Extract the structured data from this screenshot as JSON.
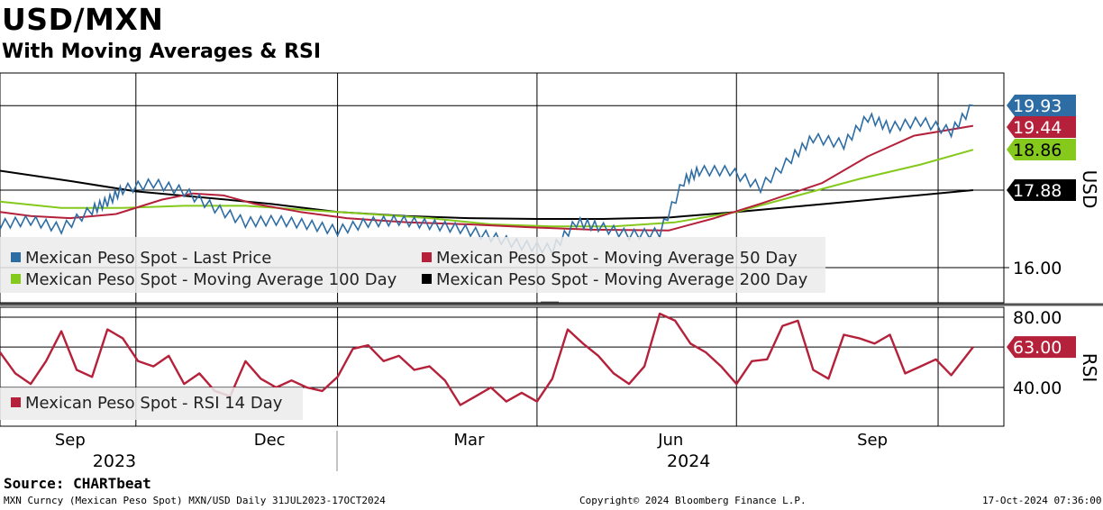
{
  "header": {
    "title": "USD/MXN",
    "subtitle": "With Moving Averages & RSI"
  },
  "legend_top": [
    {
      "label": "Mexican Peso Spot - Last Price",
      "color": "#2e6da4"
    },
    {
      "label": "Mexican Peso Spot - Moving Average 50 Day",
      "color": "#b5213a"
    },
    {
      "label": "Mexican Peso Spot - Moving Average 100 Day",
      "color": "#84c91c"
    },
    {
      "label": "Mexican Peso Spot - Moving Average 200 Day",
      "color": "#000000"
    }
  ],
  "legend_bottom": [
    {
      "label": "Mexican Peso Spot - RSI 14 Day",
      "color": "#b5213a"
    }
  ],
  "footer": {
    "source": "Source: CHARTbeat",
    "ticker_info": "MXN Curncy (Mexican Peso Spot) MXN/USD  Daily 31JUL2023-17OCT2024",
    "copyright": "Copyright© 2024 Bloomberg Finance L.P.",
    "timestamp": "17-Oct-2024 07:36:00"
  },
  "chart_data": [
    {
      "type": "line",
      "title": "USD/MXN",
      "axis_label": "USD",
      "x_ticks": [
        "Sep",
        "Dec",
        "Mar",
        "Jun",
        "Sep"
      ],
      "year_labels": [
        "2023",
        "2024"
      ],
      "y_ticks": [
        "16.00"
      ],
      "tags": [
        {
          "label": "19.93",
          "color": "#2e6da4"
        },
        {
          "label": "19.44",
          "color": "#b5213a"
        },
        {
          "label": "18.86",
          "color": "#84c91c"
        },
        {
          "label": "17.88",
          "color": "#000000"
        }
      ],
      "series": [
        {
          "name": "Mexican Peso Spot - Last Price",
          "color": "#2e6da4",
          "x": [
            "2023-07-31",
            "2023-08-14",
            "2023-08-28",
            "2023-09-11",
            "2023-09-18",
            "2023-09-25",
            "2023-10-09",
            "2023-10-23",
            "2023-11-06",
            "2023-11-20",
            "2023-12-04",
            "2023-12-18",
            "2024-01-01",
            "2024-01-15",
            "2024-01-29",
            "2024-02-12",
            "2024-02-26",
            "2024-03-11",
            "2024-03-25",
            "2024-04-08",
            "2024-04-19",
            "2024-04-29",
            "2024-05-13",
            "2024-05-27",
            "2024-06-07",
            "2024-06-14",
            "2024-06-28",
            "2024-07-12",
            "2024-07-26",
            "2024-08-05",
            "2024-08-19",
            "2024-08-30",
            "2024-09-09",
            "2024-09-23",
            "2024-10-07",
            "2024-10-17"
          ],
          "values": [
            17.05,
            17.15,
            16.95,
            17.4,
            17.6,
            17.9,
            18.05,
            17.85,
            17.45,
            17.1,
            17.15,
            17.05,
            16.9,
            17.1,
            17.15,
            17.05,
            16.95,
            16.75,
            16.55,
            16.45,
            17.1,
            17.0,
            16.8,
            16.85,
            18.1,
            18.35,
            18.35,
            17.95,
            18.65,
            19.15,
            19.0,
            19.65,
            19.4,
            19.55,
            19.3,
            19.93
          ]
        },
        {
          "name": "Mexican Peso Spot - Moving Average 50 Day",
          "color": "#b5213a",
          "x": [
            "2023-07-31",
            "2023-08-14",
            "2023-09-01",
            "2023-09-22",
            "2023-10-13",
            "2023-10-27",
            "2023-11-10",
            "2023-11-24",
            "2023-12-15",
            "2024-01-05",
            "2024-02-02",
            "2024-03-01",
            "2024-03-29",
            "2024-04-26",
            "2024-05-31",
            "2024-06-21",
            "2024-07-12",
            "2024-08-09",
            "2024-08-30",
            "2024-09-20",
            "2024-10-17"
          ],
          "values": [
            17.35,
            17.25,
            17.2,
            17.3,
            17.65,
            17.8,
            17.75,
            17.55,
            17.35,
            17.2,
            17.1,
            17.05,
            16.98,
            16.92,
            16.9,
            17.2,
            17.55,
            18.05,
            18.7,
            19.2,
            19.44
          ]
        },
        {
          "name": "Mexican Peso Spot - Moving Average 100 Day",
          "color": "#84c91c",
          "x": [
            "2023-07-31",
            "2023-08-28",
            "2023-09-25",
            "2023-10-23",
            "2023-11-20",
            "2023-12-18",
            "2024-01-15",
            "2024-02-12",
            "2024-03-11",
            "2024-04-08",
            "2024-05-06",
            "2024-06-03",
            "2024-07-01",
            "2024-07-29",
            "2024-08-26",
            "2024-09-23",
            "2024-10-17"
          ],
          "values": [
            17.6,
            17.45,
            17.45,
            17.5,
            17.5,
            17.4,
            17.3,
            17.2,
            17.05,
            17.0,
            17.0,
            17.1,
            17.35,
            17.75,
            18.15,
            18.5,
            18.86
          ]
        },
        {
          "name": "Mexican Peso Spot - Moving Average 200 Day",
          "color": "#000000",
          "x": [
            "2023-07-31",
            "2023-09-01",
            "2023-10-01",
            "2023-11-01",
            "2023-12-01",
            "2024-01-01",
            "2024-02-01",
            "2024-03-01",
            "2024-04-01",
            "2024-05-01",
            "2024-06-01",
            "2024-07-01",
            "2024-08-01",
            "2024-09-01",
            "2024-10-17"
          ],
          "values": [
            18.35,
            18.1,
            17.85,
            17.7,
            17.55,
            17.35,
            17.25,
            17.2,
            17.18,
            17.18,
            17.22,
            17.35,
            17.5,
            17.65,
            17.88
          ]
        }
      ]
    },
    {
      "type": "line",
      "title": "RSI",
      "axis_label": "RSI",
      "y_ticks": [
        "80.00",
        "40.00"
      ],
      "tags": [
        {
          "label": "63.00",
          "color": "#b5213a"
        }
      ],
      "series": [
        {
          "name": "Mexican Peso Spot - RSI 14 Day",
          "color": "#b5213a",
          "x": [
            "2023-07-31",
            "2023-08-07",
            "2023-08-14",
            "2023-08-21",
            "2023-08-28",
            "2023-09-04",
            "2023-09-11",
            "2023-09-18",
            "2023-09-25",
            "2023-10-02",
            "2023-10-09",
            "2023-10-16",
            "2023-10-23",
            "2023-10-30",
            "2023-11-06",
            "2023-11-13",
            "2023-11-20",
            "2023-11-27",
            "2023-12-04",
            "2023-12-11",
            "2023-12-18",
            "2023-12-25",
            "2024-01-01",
            "2024-01-08",
            "2024-01-15",
            "2024-01-22",
            "2024-01-29",
            "2024-02-05",
            "2024-02-12",
            "2024-02-19",
            "2024-02-26",
            "2024-03-04",
            "2024-03-11",
            "2024-03-18",
            "2024-03-25",
            "2024-04-01",
            "2024-04-08",
            "2024-04-15",
            "2024-04-22",
            "2024-04-29",
            "2024-05-06",
            "2024-05-13",
            "2024-05-20",
            "2024-05-27",
            "2024-06-03",
            "2024-06-10",
            "2024-06-17",
            "2024-06-24",
            "2024-07-01",
            "2024-07-08",
            "2024-07-15",
            "2024-07-22",
            "2024-07-29",
            "2024-08-05",
            "2024-08-12",
            "2024-08-19",
            "2024-08-26",
            "2024-09-02",
            "2024-09-09",
            "2024-09-16",
            "2024-09-23",
            "2024-09-30",
            "2024-10-07",
            "2024-10-17"
          ],
          "values": [
            60,
            48,
            42,
            55,
            72,
            50,
            46,
            73,
            68,
            55,
            52,
            58,
            42,
            48,
            38,
            35,
            55,
            45,
            40,
            44,
            40,
            38,
            46,
            62,
            64,
            55,
            58,
            50,
            52,
            44,
            30,
            35,
            40,
            32,
            37,
            32,
            45,
            73,
            65,
            58,
            48,
            42,
            52,
            82,
            78,
            65,
            60,
            52,
            42,
            55,
            56,
            75,
            78,
            50,
            45,
            70,
            68,
            65,
            70,
            48,
            52,
            56,
            47,
            63
          ]
        }
      ]
    }
  ]
}
